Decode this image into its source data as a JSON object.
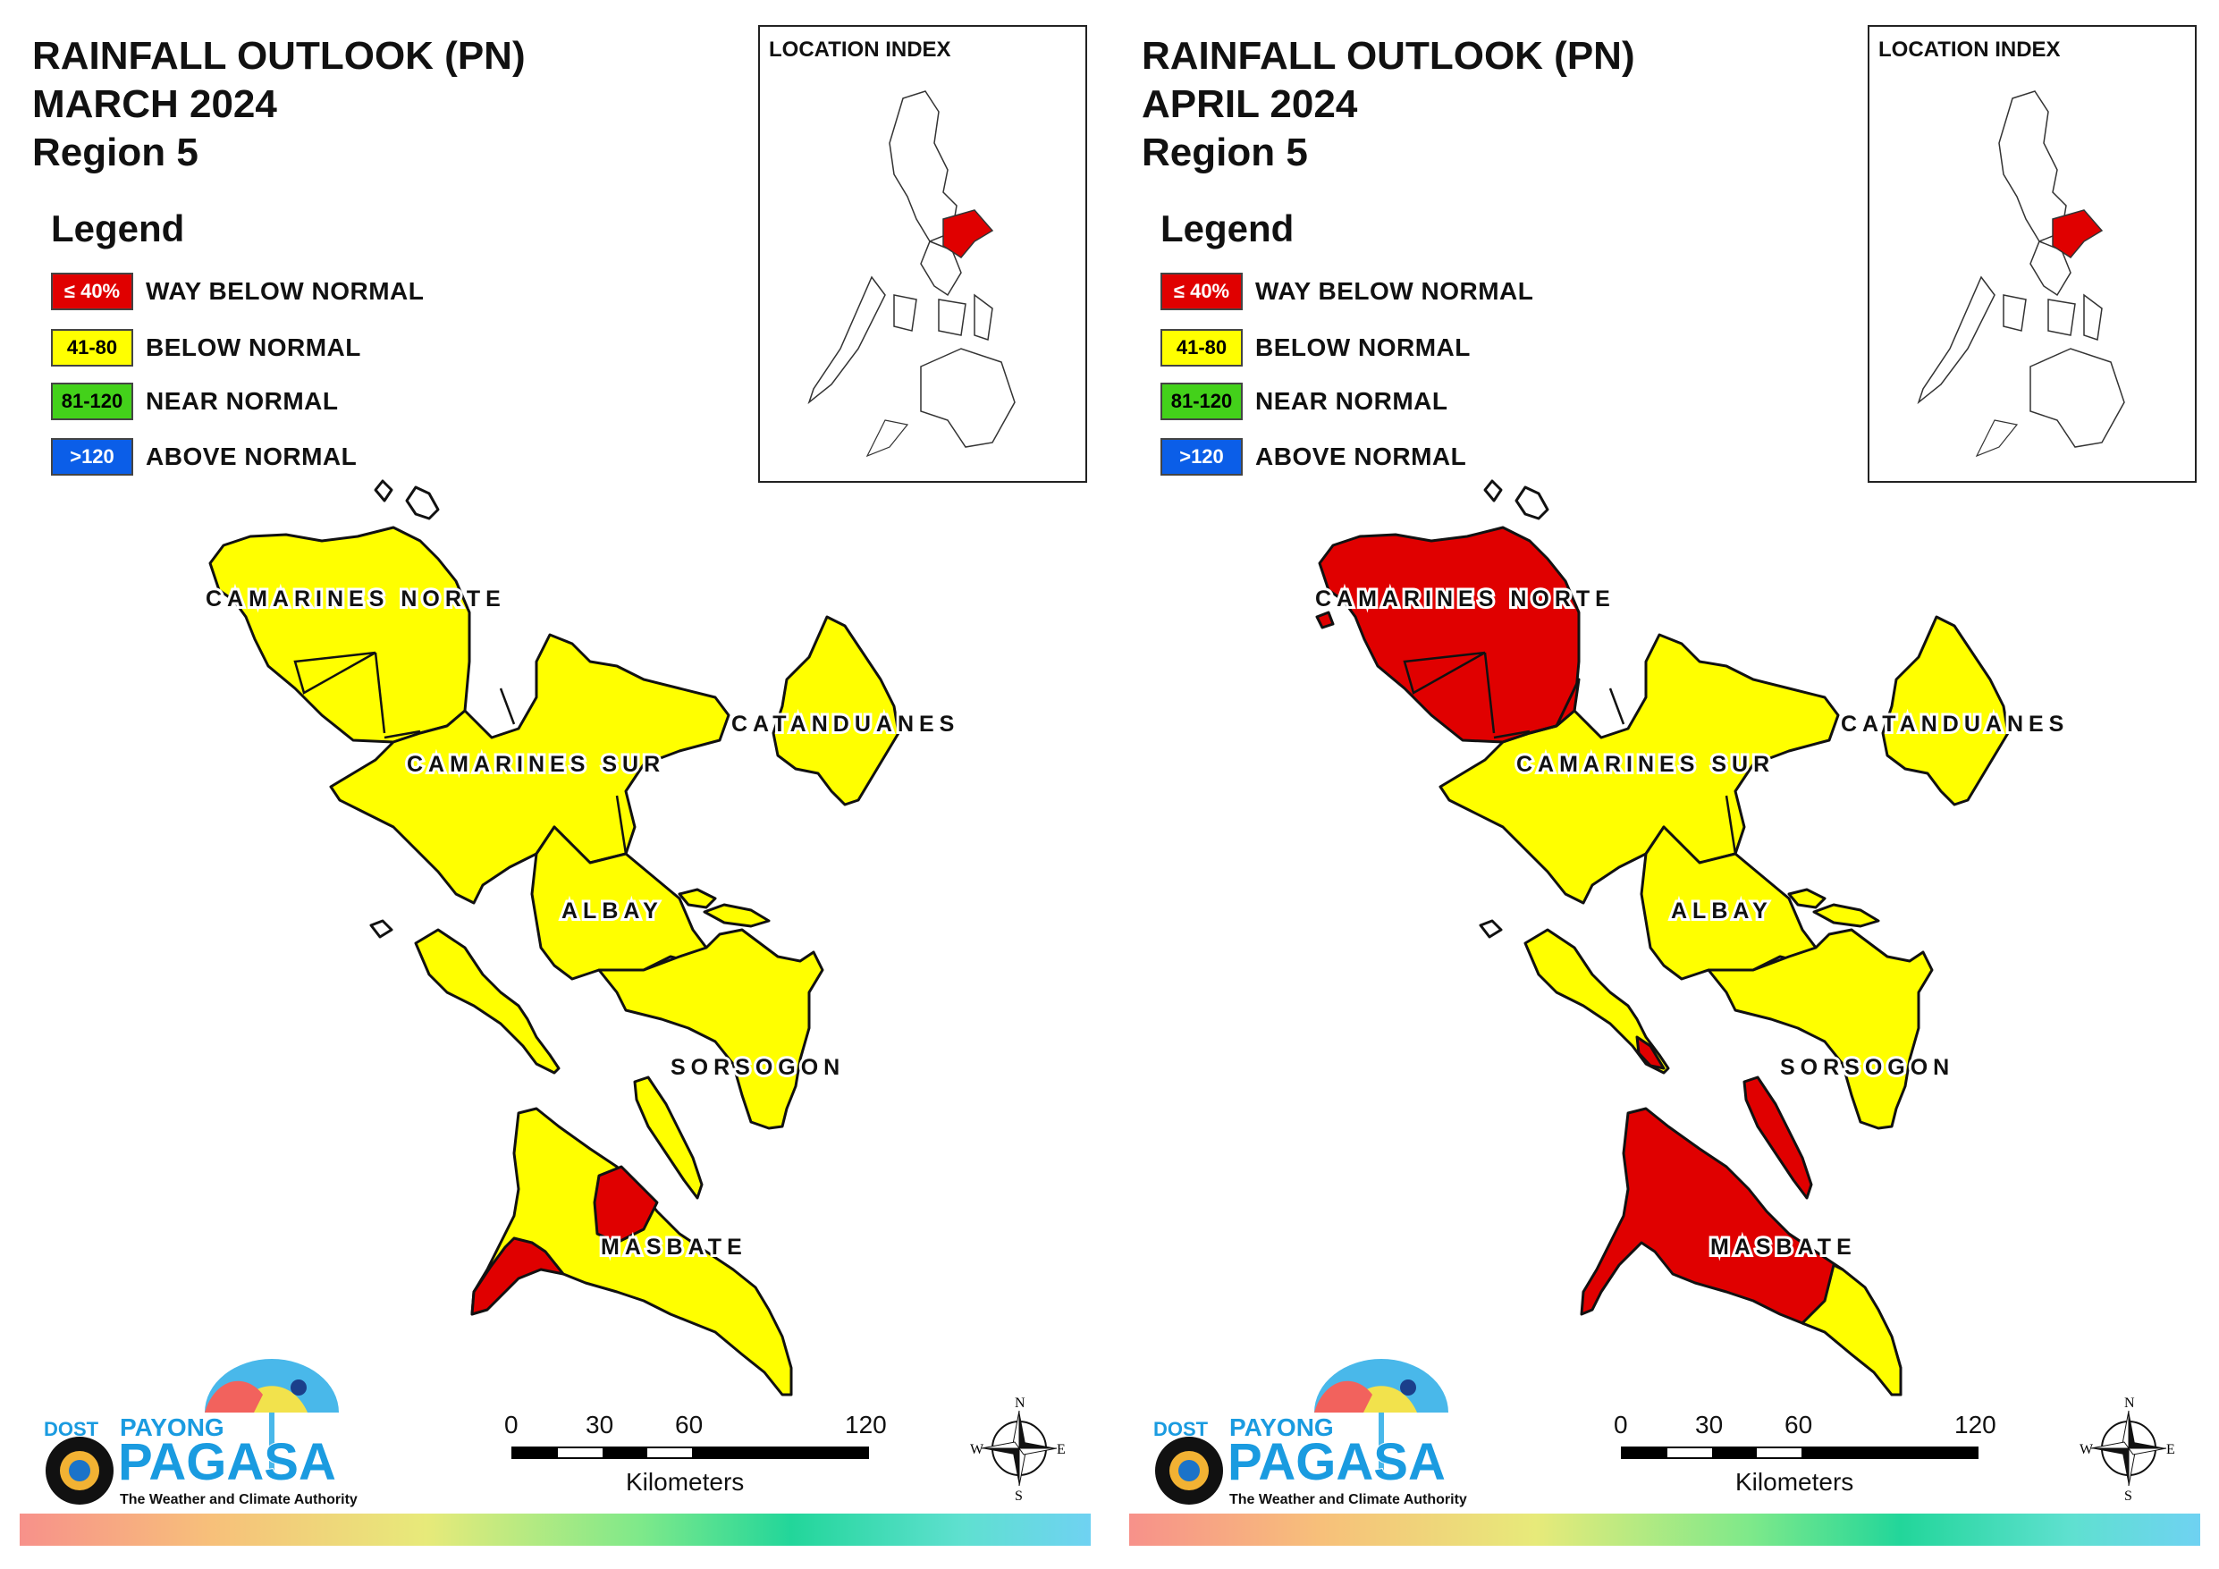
{
  "panels": [
    {
      "title_lines": [
        "RAINFALL OUTLOOK (PN)",
        "MARCH 2024",
        "Region 5"
      ],
      "legend_title": "Legend",
      "legend": [
        {
          "range": "≤ 40%",
          "label": "WAY BELOW NORMAL",
          "color": "#e00000",
          "text_color": "#ffffff"
        },
        {
          "range": "41-80",
          "label": "BELOW NORMAL",
          "color": "#ffff00",
          "text_color": "#000000"
        },
        {
          "range": "81-120",
          "label": "NEAR NORMAL",
          "color": "#43d11a",
          "text_color": "#000000"
        },
        {
          "range": ">120",
          "label": "ABOVE NORMAL",
          "color": "#0b5ee8",
          "text_color": "#ffffff"
        }
      ],
      "inset_title": "LOCATION INDEX",
      "provinces": [
        {
          "name": "CAMARINES NORTE",
          "outlook": "BELOW NORMAL"
        },
        {
          "name": "CAMARINES SUR",
          "outlook": "BELOW NORMAL"
        },
        {
          "name": "CATANDUANES",
          "outlook": "BELOW NORMAL"
        },
        {
          "name": "ALBAY",
          "outlook": "BELOW NORMAL"
        },
        {
          "name": "SORSOGON",
          "outlook": "BELOW NORMAL"
        },
        {
          "name": "MASBATE",
          "outlook": "BELOW NORMAL / WAY BELOW NORMAL"
        }
      ],
      "scale": {
        "ticks": [
          "0",
          "30",
          "60",
          "120"
        ],
        "unit": "Kilometers"
      },
      "compass": {
        "n": "N",
        "e": "E",
        "s": "S",
        "w": "W"
      },
      "logo": {
        "dost": "DOST",
        "payong": "PAYONG",
        "pagasa": "PAGASA",
        "tagline": "The Weather and Climate Authority"
      }
    },
    {
      "title_lines": [
        "RAINFALL OUTLOOK (PN)",
        "APRIL 2024",
        "Region 5"
      ],
      "legend_title": "Legend",
      "legend": [
        {
          "range": "≤ 40%",
          "label": "WAY BELOW NORMAL",
          "color": "#e00000",
          "text_color": "#ffffff"
        },
        {
          "range": "41-80",
          "label": "BELOW NORMAL",
          "color": "#ffff00",
          "text_color": "#000000"
        },
        {
          "range": "81-120",
          "label": "NEAR NORMAL",
          "color": "#43d11a",
          "text_color": "#000000"
        },
        {
          "range": ">120",
          "label": "ABOVE NORMAL",
          "color": "#0b5ee8",
          "text_color": "#ffffff"
        }
      ],
      "inset_title": "LOCATION INDEX",
      "provinces": [
        {
          "name": "CAMARINES NORTE",
          "outlook": "WAY BELOW NORMAL"
        },
        {
          "name": "CAMARINES SUR",
          "outlook": "BELOW NORMAL / WAY BELOW NORMAL"
        },
        {
          "name": "CATANDUANES",
          "outlook": "BELOW NORMAL"
        },
        {
          "name": "ALBAY",
          "outlook": "BELOW NORMAL"
        },
        {
          "name": "SORSOGON",
          "outlook": "BELOW NORMAL"
        },
        {
          "name": "MASBATE",
          "outlook": "WAY BELOW NORMAL / BELOW NORMAL"
        }
      ],
      "scale": {
        "ticks": [
          "0",
          "30",
          "60",
          "120"
        ],
        "unit": "Kilometers"
      },
      "compass": {
        "n": "N",
        "e": "E",
        "s": "S",
        "w": "W"
      },
      "logo": {
        "dost": "DOST",
        "payong": "PAYONG",
        "pagasa": "PAGASA",
        "tagline": "The Weather and Climate Authority"
      }
    }
  ]
}
